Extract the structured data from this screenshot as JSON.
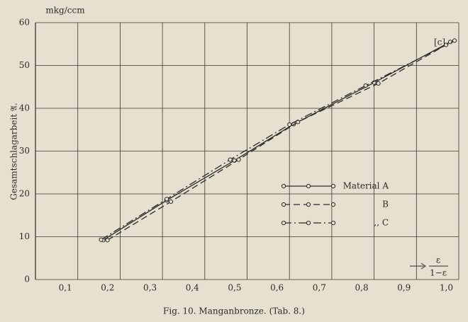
{
  "chart_data": {
    "type": "line",
    "y_unit": "mkg/ccm",
    "y_label": "Gesamtschlagarbeit 𝔄.",
    "x_label_numerator": "ε",
    "x_label_denominator": "1−ε",
    "annotation": "[c]",
    "caption": "Fig. 10. Manganbronze. (Tab. 8.)",
    "xlim": [
      0,
      1.0
    ],
    "ylim": [
      0,
      60
    ],
    "xticks": [
      {
        "value": 0.1,
        "label": "0,1"
      },
      {
        "value": 0.2,
        "label": "0,2"
      },
      {
        "value": 0.3,
        "label": "0,3"
      },
      {
        "value": 0.4,
        "label": "0,4"
      },
      {
        "value": 0.5,
        "label": "0,5"
      },
      {
        "value": 0.6,
        "label": "0,6"
      },
      {
        "value": 0.7,
        "label": "0,7"
      },
      {
        "value": 0.8,
        "label": "0,8"
      },
      {
        "value": 0.9,
        "label": "0,9"
      },
      {
        "value": 1.0,
        "label": "1,0"
      }
    ],
    "yticks": [
      0,
      10,
      20,
      30,
      40,
      50,
      60
    ],
    "grid": true,
    "series": [
      {
        "name": "Material A",
        "color": "#2b2a27",
        "linestyle": "solid",
        "x": [
          0.16,
          0.31,
          0.47,
          0.61,
          0.8,
          0.98
        ],
        "values": [
          9.2,
          18.5,
          27.8,
          36.3,
          46.0,
          55.5
        ]
      },
      {
        "name": "B",
        "color": "#2b2a27",
        "linestyle": "dashed",
        "x": [
          0.17,
          0.32,
          0.48,
          0.62,
          0.81,
          0.97
        ],
        "values": [
          9.2,
          18.2,
          28.0,
          36.8,
          45.8,
          54.8
        ]
      },
      {
        "name": ",,  C",
        "color": "#2b2a27",
        "linestyle": "dashdot",
        "x": [
          0.155,
          0.31,
          0.46,
          0.6,
          0.78,
          0.99
        ],
        "values": [
          9.3,
          18.8,
          28.0,
          36.2,
          45.3,
          55.8
        ]
      }
    ]
  }
}
